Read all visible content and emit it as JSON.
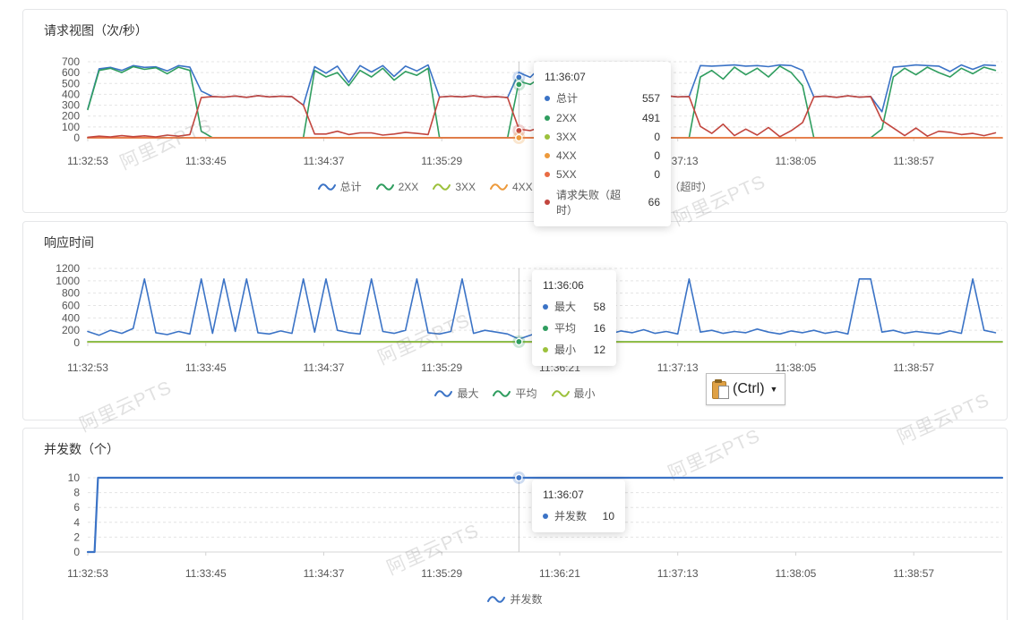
{
  "watermark": {
    "text": "阿里云PTS"
  },
  "paste_button": {
    "label": "(Ctrl)",
    "caret": "▼",
    "icon": "clipboard-paste-icon"
  },
  "colors": {
    "total_blue": "#3B73C6",
    "ok_green": "#2F9D5F",
    "c3xx_yellowgreen": "#9CC13C",
    "c4xx_orange": "#ED9A3C",
    "c5xx_vermilion": "#E96C44",
    "fail_red": "#C2463E",
    "grid": "#e4e4e4",
    "axis": "#d4d4d4",
    "crosshair": "#c9c9c9"
  },
  "chart_data": [
    {
      "type": "line",
      "title": "请求视图（次/秒）",
      "ylabel": "次/秒",
      "ylim": [
        0,
        700
      ],
      "yticks": [
        700,
        600,
        500,
        400,
        300,
        200,
        100,
        0
      ],
      "t_domain": [
        0,
        403
      ],
      "sample_dt": 5,
      "xticks": {
        "t": [
          0,
          52,
          104,
          156,
          208,
          260,
          312,
          364
        ],
        "labels": [
          "11:32:53",
          "11:33:45",
          "11:34:37",
          "11:35:29",
          "11:36:21",
          "11:37:13",
          "11:38:05",
          "11:38:57"
        ]
      },
      "grid": true,
      "legend_position": "bottom",
      "series": [
        {
          "name": "总计",
          "color": "#3B73C6",
          "values": [
            265,
            635,
            648,
            620,
            665,
            648,
            653,
            615,
            665,
            650,
            430,
            380,
            375,
            385,
            372,
            388,
            376,
            382,
            378,
            300,
            655,
            595,
            660,
            510,
            665,
            605,
            665,
            565,
            660,
            615,
            670,
            375,
            382,
            376,
            386,
            374,
            380,
            370,
            600,
            557,
            660,
            525,
            665,
            590,
            670,
            620,
            665,
            600,
            378,
            384,
            374,
            386,
            376,
            380,
            665,
            660,
            665,
            670,
            660,
            665,
            655,
            670,
            665,
            620,
            376,
            384,
            372,
            386,
            374,
            380,
            240,
            650,
            660,
            670,
            665,
            660,
            610,
            670,
            630,
            670,
            665
          ]
        },
        {
          "name": "2XX",
          "color": "#2F9D5F",
          "values": [
            260,
            620,
            640,
            600,
            655,
            630,
            645,
            590,
            650,
            620,
            60,
            0,
            0,
            0,
            0,
            0,
            0,
            0,
            0,
            0,
            620,
            560,
            600,
            480,
            620,
            560,
            640,
            530,
            610,
            575,
            640,
            0,
            0,
            0,
            0,
            0,
            0,
            0,
            520,
            491,
            560,
            480,
            600,
            540,
            630,
            560,
            610,
            480,
            0,
            0,
            0,
            0,
            0,
            0,
            560,
            620,
            540,
            650,
            580,
            640,
            560,
            660,
            600,
            480,
            0,
            0,
            0,
            0,
            0,
            0,
            80,
            560,
            640,
            580,
            650,
            600,
            560,
            640,
            590,
            650,
            620
          ]
        },
        {
          "name": "3XX",
          "color": "#9CC13C",
          "constant": 0
        },
        {
          "name": "4XX",
          "color": "#ED9A3C",
          "constant": 0
        },
        {
          "name": "5XX",
          "color": "#E96C44",
          "constant": 0
        },
        {
          "name": "请求失败（超时）",
          "color": "#C2463E",
          "values": [
            5,
            15,
            8,
            20,
            10,
            18,
            8,
            25,
            15,
            30,
            370,
            380,
            375,
            385,
            372,
            388,
            376,
            382,
            378,
            300,
            35,
            35,
            60,
            30,
            45,
            45,
            25,
            35,
            50,
            40,
            30,
            375,
            382,
            376,
            386,
            374,
            380,
            370,
            80,
            66,
            100,
            45,
            65,
            50,
            40,
            60,
            55,
            120,
            378,
            384,
            374,
            386,
            376,
            380,
            105,
            40,
            125,
            20,
            80,
            25,
            95,
            10,
            65,
            140,
            376,
            384,
            372,
            386,
            374,
            380,
            160,
            90,
            20,
            90,
            15,
            60,
            50,
            30,
            40,
            20,
            45
          ]
        }
      ],
      "crosshair_t": 190,
      "highlights": [
        {
          "color": "#3B73C6",
          "v": 557
        },
        {
          "color": "#2F9D5F",
          "v": 491
        },
        {
          "color": "#C2463E",
          "v": 66
        },
        {
          "color": "#ED9A3C",
          "v": 0
        }
      ],
      "tooltip": {
        "title": "11:36:07",
        "rows": [
          {
            "color": "#3B73C6",
            "label": "总计",
            "value": "557"
          },
          {
            "color": "#2F9D5F",
            "label": "2XX",
            "value": "491"
          },
          {
            "color": "#9CC13C",
            "label": "3XX",
            "value": "0"
          },
          {
            "color": "#ED9A3C",
            "label": "4XX",
            "value": "0"
          },
          {
            "color": "#E96C44",
            "label": "5XX",
            "value": "0"
          },
          {
            "color": "#C2463E",
            "label": "请求失败（超时）",
            "value": "66"
          }
        ]
      }
    },
    {
      "type": "line",
      "title": "响应时间",
      "ylim": [
        0,
        1200
      ],
      "yticks": [
        1200,
        1000,
        800,
        600,
        400,
        200,
        0
      ],
      "t_domain": [
        0,
        403
      ],
      "sample_dt": 5,
      "xticks": {
        "t": [
          0,
          52,
          104,
          156,
          208,
          260,
          312,
          364
        ],
        "labels": [
          "11:32:53",
          "11:33:45",
          "11:34:37",
          "11:35:29",
          "11:36:21",
          "11:37:13",
          "11:38:05",
          "11:38:57"
        ]
      },
      "grid": true,
      "legend_position": "bottom",
      "series": [
        {
          "name": "最大",
          "color": "#3B73C6",
          "values": [
            180,
            120,
            200,
            150,
            230,
            1030,
            160,
            130,
            180,
            140,
            1030,
            150,
            1030,
            180,
            1030,
            160,
            140,
            190,
            150,
            1030,
            170,
            1030,
            200,
            160,
            140,
            1030,
            180,
            150,
            200,
            1030,
            160,
            140,
            180,
            1030,
            150,
            200,
            170,
            140,
            58,
            120,
            180,
            150,
            200,
            160,
            230,
            170,
            140,
            190,
            160,
            210,
            150,
            180,
            140,
            1030,
            170,
            200,
            150,
            180,
            160,
            220,
            170,
            140,
            190,
            160,
            200,
            150,
            180,
            140,
            1030,
            1030,
            170,
            200,
            150,
            180,
            160,
            140,
            190,
            150,
            1030,
            200,
            160
          ]
        },
        {
          "name": "平均",
          "color": "#2F9D5F",
          "constant": 16
        },
        {
          "name": "最小",
          "color": "#9CC13C",
          "constant": 12
        }
      ],
      "crosshair_t": 190,
      "highlights": [
        {
          "color": "#2F9D5F",
          "v": 16
        }
      ],
      "tooltip": {
        "title": "11:36:06",
        "rows": [
          {
            "color": "#3B73C6",
            "label": "最大",
            "value": "58"
          },
          {
            "color": "#2F9D5F",
            "label": "平均",
            "value": "16"
          },
          {
            "color": "#9CC13C",
            "label": "最小",
            "value": "12"
          }
        ]
      }
    },
    {
      "type": "line",
      "title": "并发数（个）",
      "ylim": [
        0,
        10
      ],
      "yticks": [
        10,
        8,
        6,
        4,
        2,
        0
      ],
      "t_domain": [
        0,
        403
      ],
      "xticks": {
        "t": [
          0,
          52,
          104,
          156,
          208,
          260,
          312,
          364
        ],
        "labels": [
          "11:32:53",
          "11:33:45",
          "11:34:37",
          "11:35:29",
          "11:36:21",
          "11:37:13",
          "11:38:05",
          "11:38:57"
        ]
      },
      "grid": true,
      "legend_position": "bottom",
      "series": [
        {
          "name": "并发数",
          "color": "#3B73C6",
          "width": 2.2,
          "points": {
            "t": [
              0,
              3,
              4.5,
              403
            ],
            "v": [
              0,
              0,
              10,
              10
            ]
          }
        }
      ],
      "crosshair_t": 190,
      "highlights": [
        {
          "color": "#3B73C6",
          "v": 10
        }
      ],
      "tooltip": {
        "title": "11:36:07",
        "rows": [
          {
            "color": "#3B73C6",
            "label": "并发数",
            "value": "10"
          }
        ]
      }
    }
  ]
}
